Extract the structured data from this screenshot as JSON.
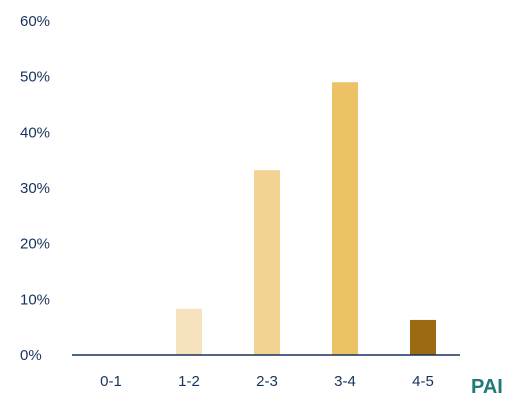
{
  "chart_data": {
    "type": "bar",
    "categories": [
      "0-1",
      "1-2",
      "2-3",
      "3-4",
      "4-5"
    ],
    "values": [
      0,
      8.3,
      33.2,
      49,
      6.3
    ],
    "value_unit": "%",
    "ylim": [
      0,
      60
    ],
    "yticks": [
      0,
      10,
      20,
      30,
      40,
      50,
      60
    ],
    "ytick_labels": [
      "0%",
      "10%",
      "20%",
      "30%",
      "40%",
      "50%",
      "60%"
    ],
    "xlabel": "PAI",
    "ylabel": "",
    "title": "",
    "grid": false,
    "legend": "none",
    "bar_colors": [
      "#f6e2bd",
      "#f6e2bd",
      "#f3d391",
      "#ecc266",
      "#9a6b12"
    ],
    "colors": {
      "tick_text": "#16325c",
      "axis_line": "#16325c",
      "axis_title": "#1e7a78"
    }
  }
}
